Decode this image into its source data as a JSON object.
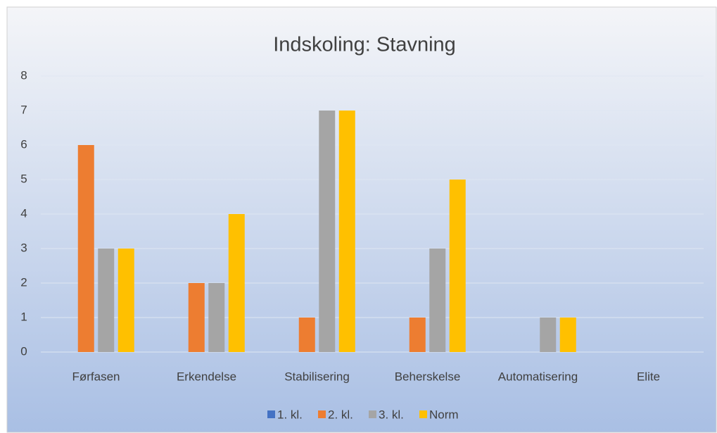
{
  "chart_data": {
    "type": "bar",
    "title": "Indskoling: Stavning",
    "categories": [
      "Førfasen",
      "Erkendelse",
      "Stabilisering",
      "Beherskelse",
      "Automatisering",
      "Elite"
    ],
    "series": [
      {
        "name": "1. kl.",
        "color": "#4472c4",
        "values": [
          0,
          0,
          0,
          0,
          0,
          0
        ]
      },
      {
        "name": "2. kl.",
        "color": "#ed7d31",
        "values": [
          6,
          2,
          1,
          1,
          0,
          0
        ]
      },
      {
        "name": "3. kl.",
        "color": "#a5a5a5",
        "values": [
          3,
          2,
          7,
          3,
          1,
          0
        ]
      },
      {
        "name": "Norm",
        "color": "#ffc000",
        "values": [
          3,
          4,
          7,
          5,
          1,
          0
        ]
      }
    ],
    "ylim": [
      0,
      8
    ],
    "yticks": [
      0,
      1,
      2,
      3,
      4,
      5,
      6,
      7,
      8
    ],
    "grid": true,
    "legend": "bottom"
  }
}
